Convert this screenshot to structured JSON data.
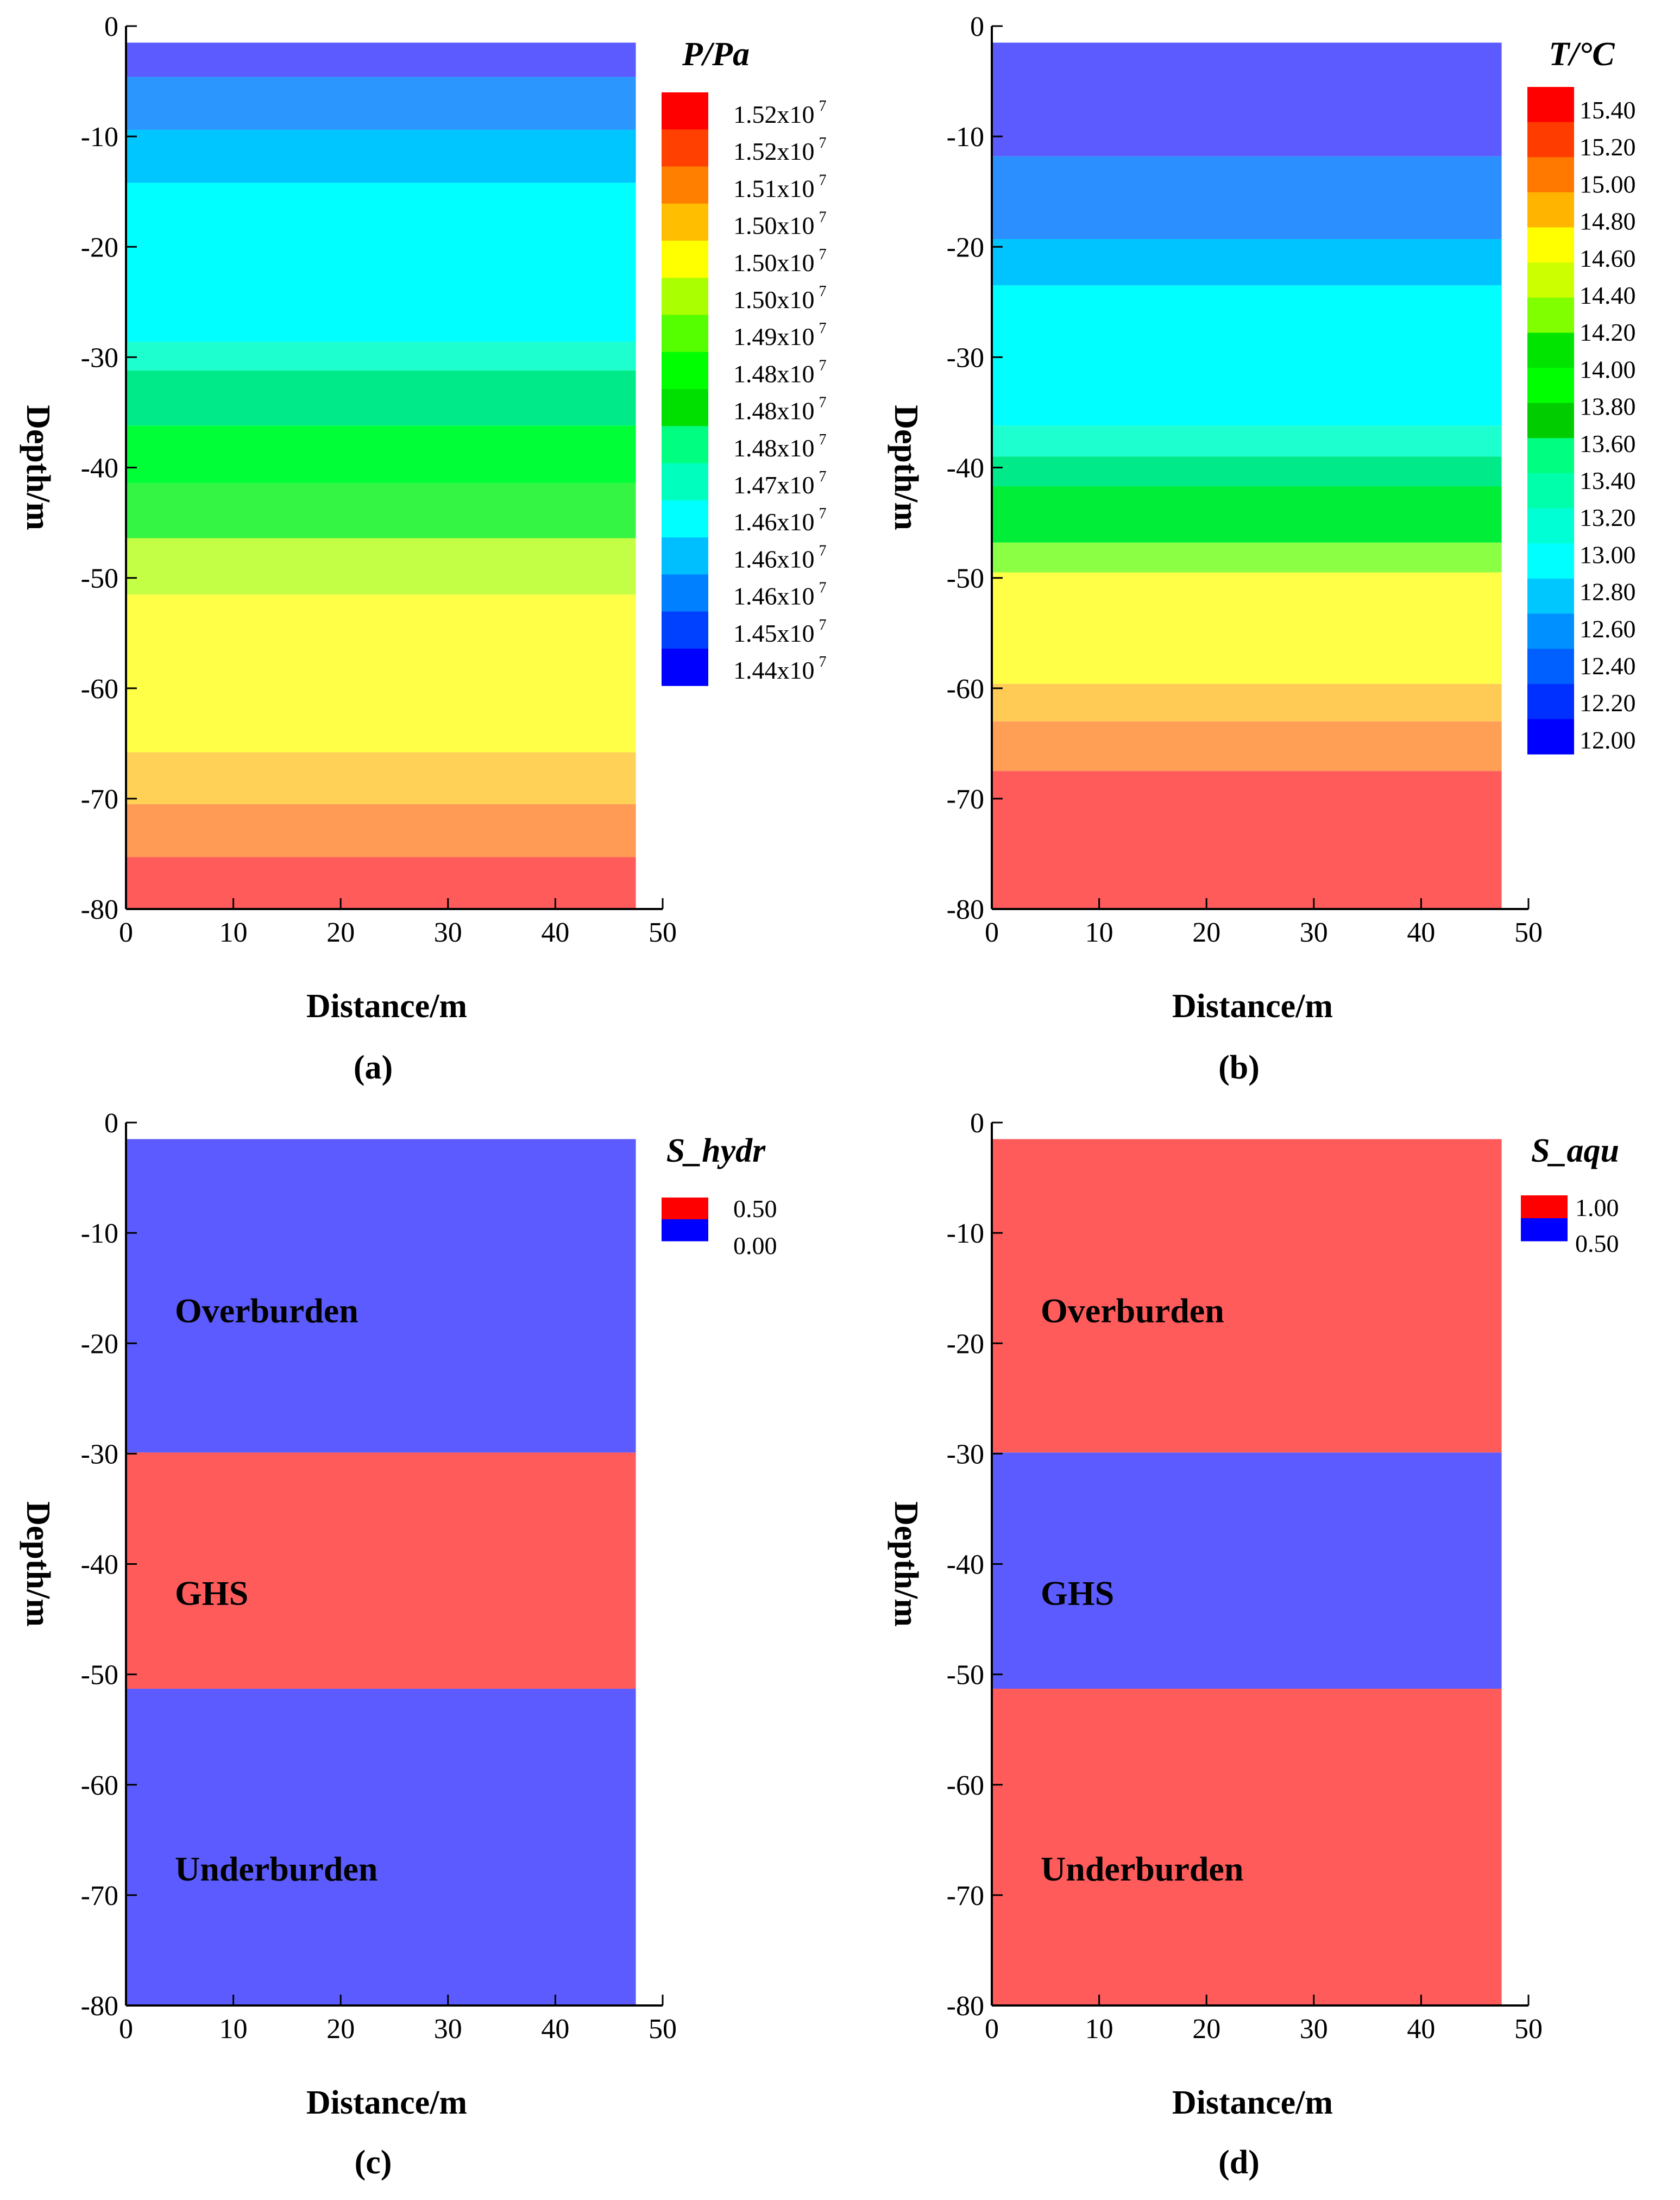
{
  "chart_data": [
    {
      "id": "a",
      "type": "heatmap",
      "caption": "(a)",
      "xlabel": "Distance/m",
      "ylabel": "Depth/m",
      "xlim": [
        0,
        50
      ],
      "ylim": [
        -80,
        0
      ],
      "xticks": [
        "0",
        "10",
        "20",
        "30",
        "40",
        "50"
      ],
      "yticks": [
        "0",
        "-10",
        "-20",
        "-30",
        "-40",
        "-50",
        "-60",
        "-70",
        "-80"
      ],
      "domain_x": [
        0,
        47.5
      ],
      "domain_y": [
        -80,
        -1.5
      ],
      "legend": {
        "title": "P/Pa",
        "sup": "7",
        "labels": [
          "1.52x10",
          "1.52x10",
          "1.51x10",
          "1.50x10",
          "1.50x10",
          "1.50x10",
          "1.49x10",
          "1.48x10",
          "1.48x10",
          "1.48x10",
          "1.47x10",
          "1.46x10",
          "1.46x10",
          "1.46x10",
          "1.45x10",
          "1.44x10"
        ],
        "colors": [
          "#ff0000",
          "#ff4000",
          "#ff8000",
          "#ffbf00",
          "#ffff00",
          "#aaff00",
          "#55ff00",
          "#00ff00",
          "#00e000",
          "#00ff80",
          "#00ffbf",
          "#00ffff",
          "#00bfff",
          "#0080ff",
          "#0040ff",
          "#0000ff"
        ]
      },
      "bands": [
        {
          "top": -1.5,
          "bottom": -4.6,
          "color": "#5b5bff"
        },
        {
          "top": -4.6,
          "bottom": -9.4,
          "color": "#2c96ff"
        },
        {
          "top": -9.4,
          "bottom": -14.2,
          "color": "#00c6ff"
        },
        {
          "top": -14.2,
          "bottom": -28.6,
          "color": "#00ffff"
        },
        {
          "top": -28.6,
          "bottom": -31.2,
          "color": "#1effcf"
        },
        {
          "top": -31.2,
          "bottom": -36.2,
          "color": "#00ea8a"
        },
        {
          "top": -36.2,
          "bottom": -41.4,
          "color": "#00ff37"
        },
        {
          "top": -41.4,
          "bottom": -46.4,
          "color": "#35f544"
        },
        {
          "top": -46.4,
          "bottom": -51.5,
          "color": "#c3ff44"
        },
        {
          "top": -51.5,
          "bottom": -65.8,
          "color": "#ffff48"
        },
        {
          "top": -65.8,
          "bottom": -70.5,
          "color": "#ffd157"
        },
        {
          "top": -70.5,
          "bottom": -75.3,
          "color": "#ff9b55"
        },
        {
          "top": -75.3,
          "bottom": -80.0,
          "color": "#ff5b5b"
        }
      ]
    },
    {
      "id": "b",
      "type": "heatmap",
      "caption": "(b)",
      "xlabel": "Distance/m",
      "ylabel": "Depth/m",
      "xlim": [
        0,
        50
      ],
      "ylim": [
        -80,
        0
      ],
      "xticks": [
        "0",
        "10",
        "20",
        "30",
        "40",
        "50"
      ],
      "yticks": [
        "0",
        "-10",
        "-20",
        "-30",
        "-40",
        "-50",
        "-60",
        "-70",
        "-80"
      ],
      "domain_x": [
        0,
        47.5
      ],
      "domain_y": [
        -80,
        -1.5
      ],
      "legend": {
        "title": "T/°C",
        "sup": "",
        "labels": [
          "15.40",
          "15.20",
          "15.00",
          "14.80",
          "14.60",
          "14.40",
          "14.20",
          "14.00",
          "13.80",
          "13.60",
          "13.40",
          "13.20",
          "13.00",
          "12.80",
          "12.60",
          "12.40",
          "12.20",
          "12.00"
        ],
        "colors": [
          "#ff0000",
          "#ff3c00",
          "#ff7800",
          "#ffb400",
          "#ffff00",
          "#ccff00",
          "#80ff00",
          "#00e400",
          "#00ff00",
          "#00cc00",
          "#00ff80",
          "#00ffaa",
          "#00ffd5",
          "#00ffff",
          "#00c8ff",
          "#0090ff",
          "#0060ff",
          "#0030ff",
          "#0000ff"
        ]
      },
      "bands": [
        {
          "top": -1.5,
          "bottom": -11.8,
          "color": "#5b5bff"
        },
        {
          "top": -11.8,
          "bottom": -19.3,
          "color": "#2c8fff"
        },
        {
          "top": -19.3,
          "bottom": -23.5,
          "color": "#00c4ff"
        },
        {
          "top": -23.5,
          "bottom": -36.2,
          "color": "#00ffff"
        },
        {
          "top": -36.2,
          "bottom": -39.0,
          "color": "#1effcf"
        },
        {
          "top": -39.0,
          "bottom": -41.7,
          "color": "#00ea8a"
        },
        {
          "top": -41.7,
          "bottom": -46.8,
          "color": "#00ee37"
        },
        {
          "top": -46.8,
          "bottom": -49.5,
          "color": "#8bff44"
        },
        {
          "top": -49.5,
          "bottom": -59.6,
          "color": "#ffff48"
        },
        {
          "top": -59.6,
          "bottom": -63.0,
          "color": "#ffcb55"
        },
        {
          "top": -63.0,
          "bottom": -67.5,
          "color": "#ff9e55"
        },
        {
          "top": -67.5,
          "bottom": -80.0,
          "color": "#ff5b5b"
        }
      ]
    },
    {
      "id": "c",
      "type": "heatmap",
      "caption": "(c)",
      "xlabel": "Distance/m",
      "ylabel": "Depth/m",
      "xlim": [
        0,
        50
      ],
      "ylim": [
        -80,
        0
      ],
      "xticks": [
        "0",
        "10",
        "20",
        "30",
        "40",
        "50"
      ],
      "yticks": [
        "0",
        "-10",
        "-20",
        "-30",
        "-40",
        "-50",
        "-60",
        "-70",
        "-80"
      ],
      "domain_x": [
        0,
        47.5
      ],
      "domain_y": [
        -80,
        -1.5
      ],
      "legend": {
        "title": "S_hydr",
        "sup": "",
        "labels": [
          "0.50",
          "0.00"
        ],
        "colors": [
          "#ff0000",
          "#0000ff"
        ]
      },
      "bands": [
        {
          "top": -1.5,
          "bottom": -29.9,
          "color": "#5b5bff"
        },
        {
          "top": -29.9,
          "bottom": -51.3,
          "color": "#ff5b5b"
        },
        {
          "top": -51.3,
          "bottom": -80.0,
          "color": "#5b5bff"
        }
      ],
      "regions": [
        {
          "label": "Overburden",
          "depth": -17.0
        },
        {
          "label": "GHS",
          "depth": -42.6
        },
        {
          "label": "Underburden",
          "depth": -67.6
        }
      ]
    },
    {
      "id": "d",
      "type": "heatmap",
      "caption": "(d)",
      "xlabel": "Distance/m",
      "ylabel": "Depth/m",
      "xlim": [
        0,
        50
      ],
      "ylim": [
        -80,
        0
      ],
      "xticks": [
        "0",
        "10",
        "20",
        "30",
        "40",
        "50"
      ],
      "yticks": [
        "0",
        "-10",
        "-20",
        "-30",
        "-40",
        "-50",
        "-60",
        "-70",
        "-80"
      ],
      "domain_x": [
        0,
        47.5
      ],
      "domain_y": [
        -80,
        -1.5
      ],
      "legend": {
        "title": "S_aqu",
        "sup": "",
        "labels": [
          "1.00",
          "0.50"
        ],
        "colors": [
          "#ff0000",
          "#0000ff"
        ]
      },
      "bands": [
        {
          "top": -1.5,
          "bottom": -29.9,
          "color": "#ff5b5b"
        },
        {
          "top": -29.9,
          "bottom": -51.3,
          "color": "#5b5bff"
        },
        {
          "top": -51.3,
          "bottom": -80.0,
          "color": "#ff5b5b"
        }
      ],
      "regions": [
        {
          "label": "Overburden",
          "depth": -17.0
        },
        {
          "label": "GHS",
          "depth": -42.6
        },
        {
          "label": "Underburden",
          "depth": -67.6
        }
      ]
    }
  ]
}
